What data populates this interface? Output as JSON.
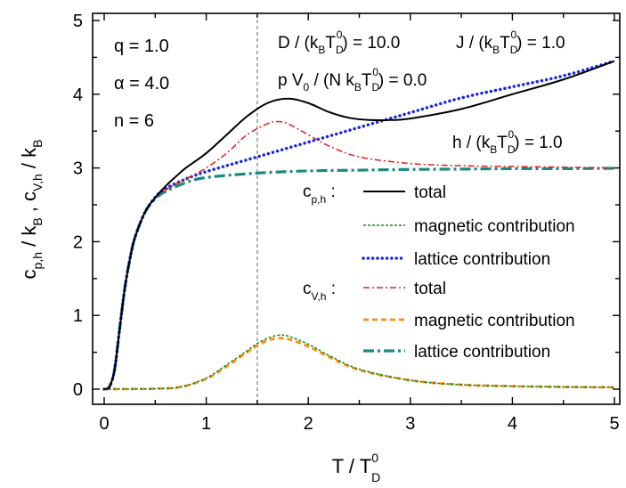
{
  "chart_data": {
    "type": "line",
    "xlabel": {
      "main": "T / T",
      "sub": "D",
      "sup": "0"
    },
    "ylabel": {
      "p1": "c",
      "s1": "p,h",
      "p2": " / k",
      "s2": "B",
      "p3": " ,  c",
      "s3": "V,h",
      "p4": " / k",
      "s4": "B"
    },
    "xlim": [
      0,
      5
    ],
    "ylim": [
      0,
      5
    ],
    "xticks": [
      "0",
      "1",
      "2",
      "3",
      "4",
      "5"
    ],
    "yticks": [
      "0",
      "1",
      "2",
      "3",
      "4",
      "5"
    ],
    "grid": false,
    "reference_line_x": 1.5,
    "params_left": [
      "q = 1.0",
      "α = 4.0",
      "n = 6"
    ],
    "params_right": {
      "D": {
        "a": "D / (k",
        "b": "B",
        "c": "T",
        "d": "D",
        "e": "0",
        "f": ") = 10.0"
      },
      "J": {
        "a": "J / (k",
        "b": "B",
        "c": "T",
        "d": "D",
        "e": "0",
        "f": ") = 1.0"
      },
      "P": {
        "a": "p V",
        "b": "0",
        "c": " / (N k",
        "d": "B",
        "e": "T",
        "f": "D",
        "g": "0",
        "h": ") = 0.0"
      },
      "H": {
        "a": "h / (k",
        "b": "B",
        "c": "T",
        "d": "D",
        "e": "0",
        "f": ") = 1.0"
      }
    },
    "legend": {
      "group_cp": {
        "main": "c",
        "sub": "p,h",
        "tail": " :"
      },
      "group_cv": {
        "main": "c",
        "sub": "V,h",
        "tail": " :"
      },
      "entries": [
        "total",
        "magnetic contribution",
        "lattice contribution",
        "total",
        "magnetic contribution",
        "lattice contribution"
      ]
    },
    "series": [
      {
        "name": "c_p,h total",
        "color": "#000000",
        "style": "solid",
        "x": [
          0,
          0.05,
          0.1,
          0.15,
          0.2,
          0.25,
          0.3,
          0.4,
          0.5,
          0.6,
          0.7,
          0.8,
          1.0,
          1.2,
          1.4,
          1.6,
          1.8,
          2.0,
          2.2,
          2.4,
          2.6,
          2.8,
          3.0,
          3.5,
          4.0,
          4.5,
          5.0
        ],
        "y": [
          0,
          0.03,
          0.25,
          0.8,
          1.35,
          1.75,
          2.05,
          2.4,
          2.6,
          2.75,
          2.88,
          3.0,
          3.2,
          3.45,
          3.7,
          3.88,
          3.94,
          3.88,
          3.76,
          3.68,
          3.65,
          3.65,
          3.67,
          3.8,
          4.0,
          4.2,
          4.45
        ]
      },
      {
        "name": "c_p,h magnetic contribution",
        "color": "#1a8a1a",
        "style": "dotted",
        "x": [
          0,
          0.25,
          0.5,
          0.75,
          1.0,
          1.2,
          1.4,
          1.5,
          1.6,
          1.7,
          1.8,
          2.0,
          2.2,
          2.5,
          3.0,
          3.5,
          4.0,
          4.5,
          5.0
        ],
        "y": [
          0,
          0.002,
          0.006,
          0.03,
          0.15,
          0.33,
          0.52,
          0.62,
          0.69,
          0.73,
          0.72,
          0.61,
          0.46,
          0.27,
          0.12,
          0.06,
          0.04,
          0.03,
          0.025
        ]
      },
      {
        "name": "c_p,h lattice contribution",
        "color": "#1a2ad4",
        "style": "dots",
        "x": [
          0,
          0.05,
          0.1,
          0.15,
          0.2,
          0.25,
          0.3,
          0.4,
          0.5,
          0.6,
          0.8,
          1.0,
          1.5,
          2.0,
          2.5,
          3.0,
          3.5,
          4.0,
          4.5,
          5.0
        ],
        "y": [
          0,
          0.03,
          0.25,
          0.8,
          1.35,
          1.75,
          2.05,
          2.4,
          2.6,
          2.72,
          2.85,
          2.95,
          3.15,
          3.35,
          3.55,
          3.75,
          3.95,
          4.1,
          4.25,
          4.45
        ]
      },
      {
        "name": "c_V,h total",
        "color": "#e02020",
        "style": "dashdot",
        "x": [
          0,
          0.05,
          0.1,
          0.15,
          0.2,
          0.25,
          0.3,
          0.4,
          0.5,
          0.6,
          0.8,
          1.0,
          1.2,
          1.4,
          1.6,
          1.7,
          1.8,
          2.0,
          2.2,
          2.5,
          3.0,
          3.5,
          4.0,
          4.5,
          5.0
        ],
        "y": [
          0,
          0.03,
          0.25,
          0.8,
          1.35,
          1.75,
          2.05,
          2.4,
          2.6,
          2.7,
          2.85,
          3.0,
          3.2,
          3.45,
          3.6,
          3.63,
          3.6,
          3.45,
          3.3,
          3.15,
          3.06,
          3.03,
          3.02,
          3.01,
          3.0
        ]
      },
      {
        "name": "c_V,h magnetic contribution",
        "color": "#ff8c1a",
        "style": "dashed",
        "x": [
          0,
          0.25,
          0.5,
          0.75,
          1.0,
          1.2,
          1.4,
          1.5,
          1.6,
          1.7,
          1.8,
          2.0,
          2.2,
          2.5,
          3.0,
          3.5,
          4.0,
          4.5,
          5.0
        ],
        "y": [
          0,
          0.002,
          0.006,
          0.03,
          0.14,
          0.31,
          0.5,
          0.59,
          0.66,
          0.69,
          0.68,
          0.58,
          0.44,
          0.26,
          0.12,
          0.06,
          0.04,
          0.03,
          0.025
        ]
      },
      {
        "name": "c_V,h lattice contribution",
        "color": "#1a8a80",
        "style": "dashdotlong",
        "x": [
          0,
          0.05,
          0.1,
          0.15,
          0.2,
          0.25,
          0.3,
          0.4,
          0.5,
          0.6,
          0.8,
          1.0,
          1.5,
          2.0,
          2.5,
          3.0,
          3.5,
          4.0,
          4.5,
          5.0
        ],
        "y": [
          0,
          0.03,
          0.25,
          0.8,
          1.35,
          1.75,
          2.05,
          2.4,
          2.58,
          2.68,
          2.8,
          2.87,
          2.93,
          2.96,
          2.97,
          2.98,
          2.985,
          2.99,
          2.99,
          2.995
        ]
      }
    ]
  }
}
